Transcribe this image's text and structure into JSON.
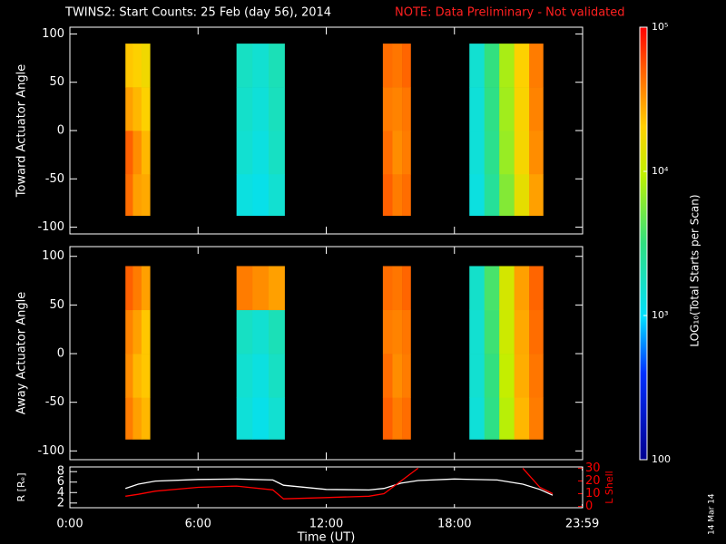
{
  "title": "TWINS2: Start Counts: 25 Feb (day  56), 2014",
  "note": "NOTE: Data Preliminary - Not validated",
  "stamp": "14 Mar 14",
  "colorbar": {
    "label": "LOG₁₀(Total Starts per Scan)",
    "scale": "log",
    "lim": [
      100,
      100000
    ],
    "ticks": [
      {
        "value": 100000,
        "label": "10⁵"
      },
      {
        "value": 10000,
        "label": "10⁴"
      },
      {
        "value": 1000,
        "label": "10³"
      },
      100
    ]
  },
  "chart_data": [
    {
      "type": "heatmap",
      "ylabel": "Toward Actuator Angle",
      "xlim": [
        0,
        24
      ],
      "xticks": [
        0,
        6,
        12,
        18,
        24
      ],
      "ylim": [
        -107,
        107
      ],
      "yticks": [
        -100,
        -50,
        0,
        50,
        100
      ],
      "angle_bins": [
        -88,
        -45,
        0,
        45,
        90
      ],
      "segments": [
        {
          "time_bins": [
            2.6,
            2.95,
            3.35,
            3.75
          ],
          "values": [
            [
              45000,
              50000,
              30000,
              22000
            ],
            [
              30000,
              35000,
              25000,
              20000
            ],
            [
              28000,
              25000,
              20000,
              17000
            ]
          ]
        },
        {
          "time_bins": [
            7.8,
            8.55,
            9.3,
            10.05
          ],
          "values": [
            [
              1300,
              1500,
              1600,
              1700
            ],
            [
              1200,
              1300,
              1400,
              1500
            ],
            [
              1500,
              1700,
              1800,
              1900
            ]
          ]
        },
        {
          "time_bins": [
            14.65,
            15.1,
            15.55,
            15.95
          ],
          "values": [
            [
              50000,
              45000,
              40000,
              45000
            ],
            [
              40000,
              35000,
              38000,
              42000
            ],
            [
              45000,
              40000,
              42000,
              48000
            ]
          ]
        },
        {
          "time_bins": [
            18.7,
            19.4,
            20.1,
            20.8,
            21.5,
            22.15
          ],
          "values": [
            [
              1300,
              1400,
              1400,
              1500
            ],
            [
              2500,
              2800,
              3000,
              3200
            ],
            [
              6000,
              7000,
              7500,
              8000
            ],
            [
              15000,
              18000,
              19000,
              20000
            ],
            [
              30000,
              35000,
              38000,
              40000
            ]
          ]
        }
      ]
    },
    {
      "type": "heatmap",
      "ylabel": "Away Actuator Angle",
      "xlim": [
        0,
        24
      ],
      "xticks": [
        0,
        6,
        12,
        18,
        24
      ],
      "ylim": [
        -109,
        110
      ],
      "yticks": [
        -100,
        -50,
        0,
        50,
        100
      ],
      "angle_bins": [
        -88,
        -45,
        0,
        45,
        90
      ],
      "segments": [
        {
          "time_bins": [
            2.6,
            2.95,
            3.35,
            3.75
          ],
          "values": [
            [
              40000,
              35000,
              38000,
              50000
            ],
            [
              30000,
              25000,
              30000,
              40000
            ],
            [
              25000,
              22000,
              22000,
              30000
            ]
          ]
        },
        {
          "time_bins": [
            7.8,
            8.55,
            9.3,
            10.05
          ],
          "values": [
            [
              1400,
              1500,
              1700,
              40000
            ],
            [
              1200,
              1300,
              1500,
              35000
            ],
            [
              1500,
              1700,
              1900,
              30000
            ]
          ]
        },
        {
          "time_bins": [
            14.65,
            15.1,
            15.55,
            15.95
          ],
          "values": [
            [
              50000,
              45000,
              40000,
              45000
            ],
            [
              40000,
              35000,
              38000,
              42000
            ],
            [
              45000,
              40000,
              42000,
              48000
            ]
          ]
        },
        {
          "time_bins": [
            18.7,
            19.4,
            20.1,
            20.8,
            21.5,
            22.15
          ],
          "values": [
            [
              1400,
              1500,
              1500,
              1600
            ],
            [
              3000,
              3200,
              3500,
              3800
            ],
            [
              9000,
              10000,
              11000,
              12000
            ],
            [
              25000,
              27000,
              28000,
              30000
            ],
            [
              40000,
              42000,
              45000,
              48000
            ]
          ]
        }
      ]
    },
    {
      "type": "line",
      "xlabel": "Time (UT)",
      "ylabel": "R [Rₑ]",
      "y2label": "L Shell",
      "xlim": [
        0,
        24
      ],
      "xticks": [
        {
          "value": 0,
          "label": "0:00"
        },
        {
          "value": 6,
          "label": "6:00"
        },
        {
          "value": 12,
          "label": "12:00"
        },
        {
          "value": 18,
          "label": "18:00"
        },
        {
          "value": 23.983,
          "label": "23:59"
        }
      ],
      "ylim": [
        1.1,
        8.9
      ],
      "yticks": [
        2,
        4,
        6,
        8
      ],
      "y2lim": [
        -1,
        31
      ],
      "y2ticks": [
        0,
        10,
        20,
        30
      ],
      "x": [
        2.6,
        3.2,
        4,
        6,
        7.8,
        9.5,
        10,
        12,
        14,
        14.7,
        15.5,
        16.3,
        18,
        20,
        21.2,
        22,
        22.6
      ],
      "series": [
        {
          "name": "R",
          "color": "#ffffff",
          "values": [
            4.8,
            5.6,
            6.2,
            6.5,
            6.6,
            6.4,
            5.4,
            4.6,
            4.5,
            4.8,
            5.8,
            6.3,
            6.6,
            6.4,
            5.6,
            4.6,
            3.5
          ]
        },
        {
          "name": "L Shell",
          "color": "#ff0000",
          "axis": "y2",
          "values": [
            8,
            9.5,
            12,
            15,
            16,
            13,
            6,
            7,
            8,
            10,
            20,
            30,
            null,
            null,
            30,
            15,
            10
          ]
        }
      ]
    }
  ]
}
